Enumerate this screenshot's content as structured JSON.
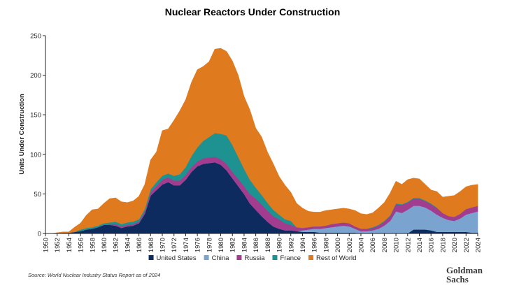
{
  "chart_data": {
    "type": "area",
    "stacked": true,
    "title": "Nuclear Reactors Under Construction",
    "xlabel": "",
    "ylabel": "Units Under Construction",
    "ylim": [
      0,
      250
    ],
    "yticks": [
      0,
      50,
      100,
      150,
      200,
      250
    ],
    "xlim": [
      1950,
      2024
    ],
    "xticks": [
      1950,
      1952,
      1954,
      1956,
      1958,
      1960,
      1962,
      1964,
      1966,
      1968,
      1970,
      1972,
      1974,
      1976,
      1978,
      1980,
      1982,
      1984,
      1986,
      1988,
      1990,
      1992,
      1994,
      1996,
      1998,
      2000,
      2002,
      2004,
      2006,
      2008,
      2010,
      2012,
      2014,
      2016,
      2018,
      2020,
      2022,
      2024
    ],
    "grid": false,
    "legend_position": "bottom",
    "x": [
      1950,
      1951,
      1952,
      1953,
      1954,
      1955,
      1956,
      1957,
      1958,
      1959,
      1960,
      1961,
      1962,
      1963,
      1964,
      1965,
      1966,
      1967,
      1968,
      1969,
      1970,
      1971,
      1972,
      1973,
      1974,
      1975,
      1976,
      1977,
      1978,
      1979,
      1980,
      1981,
      1982,
      1983,
      1984,
      1985,
      1986,
      1987,
      1988,
      1989,
      1990,
      1991,
      1992,
      1993,
      1994,
      1995,
      1996,
      1997,
      1998,
      1999,
      2000,
      2001,
      2002,
      2003,
      2004,
      2005,
      2006,
      2007,
      2008,
      2009,
      2010,
      2011,
      2012,
      2013,
      2014,
      2015,
      2016,
      2017,
      2018,
      2019,
      2020,
      2021,
      2022,
      2023,
      2024
    ],
    "series": [
      {
        "name": "United States",
        "color": "#0d2b5e",
        "values": [
          0,
          0,
          0,
          1,
          1,
          2,
          3,
          5,
          6,
          8,
          11,
          11,
          10,
          7,
          9,
          10,
          13,
          25,
          48,
          55,
          62,
          65,
          61,
          61,
          68,
          78,
          85,
          88,
          89,
          90,
          87,
          80,
          70,
          60,
          50,
          38,
          30,
          22,
          15,
          9,
          6,
          4,
          4,
          3,
          2,
          2,
          2,
          1,
          1,
          1,
          1,
          1,
          1,
          1,
          0,
          0,
          0,
          0,
          0,
          0,
          0,
          0,
          0,
          5,
          5,
          5,
          4,
          2,
          2,
          2,
          2,
          2,
          2,
          1,
          1
        ]
      },
      {
        "name": "China",
        "color": "#7ba3cf",
        "values": [
          0,
          0,
          0,
          0,
          0,
          0,
          0,
          0,
          0,
          0,
          0,
          0,
          0,
          0,
          0,
          0,
          0,
          0,
          0,
          0,
          0,
          0,
          0,
          0,
          0,
          0,
          0,
          0,
          0,
          0,
          0,
          0,
          0,
          0,
          0,
          0,
          0,
          0,
          0,
          0,
          0,
          0,
          0,
          0,
          2,
          3,
          4,
          5,
          6,
          7,
          8,
          9,
          8,
          5,
          3,
          3,
          4,
          6,
          10,
          16,
          28,
          26,
          30,
          30,
          30,
          28,
          25,
          22,
          18,
          15,
          14,
          17,
          22,
          25,
          27
        ]
      },
      {
        "name": "Russia",
        "color": "#a23c8f",
        "values": [
          0,
          0,
          0,
          0,
          0,
          0,
          0,
          0,
          0,
          0,
          0,
          1,
          2,
          2,
          2,
          2,
          2,
          3,
          4,
          5,
          6,
          6,
          6,
          6,
          6,
          6,
          6,
          7,
          7,
          7,
          7,
          8,
          8,
          9,
          10,
          12,
          14,
          15,
          14,
          13,
          12,
          9,
          7,
          5,
          3,
          3,
          3,
          3,
          3,
          4,
          4,
          4,
          4,
          3,
          3,
          3,
          3,
          4,
          5,
          6,
          9,
          10,
          9,
          9,
          9,
          8,
          8,
          8,
          6,
          5,
          5,
          6,
          7,
          7,
          7
        ]
      },
      {
        "name": "France",
        "color": "#1e9290",
        "values": [
          0,
          0,
          0,
          0,
          0,
          0,
          2,
          2,
          2,
          2,
          2,
          2,
          3,
          3,
          3,
          3,
          3,
          3,
          4,
          5,
          5,
          5,
          6,
          8,
          10,
          14,
          18,
          22,
          26,
          30,
          32,
          36,
          34,
          28,
          22,
          18,
          14,
          12,
          10,
          8,
          6,
          5,
          5,
          0,
          0,
          0,
          0,
          0,
          0,
          0,
          0,
          0,
          0,
          0,
          0,
          0,
          1,
          1,
          1,
          1,
          1,
          1,
          1,
          1,
          1,
          1,
          1,
          1,
          0,
          0,
          0,
          0,
          0,
          0,
          0
        ]
      },
      {
        "name": "Rest of World",
        "color": "#e07a1f",
        "values": [
          0,
          0,
          1,
          1,
          1,
          6,
          8,
          16,
          22,
          21,
          25,
          30,
          30,
          28,
          25,
          26,
          29,
          31,
          37,
          38,
          57,
          56,
          70,
          80,
          85,
          93,
          98,
          94,
          95,
          106,
          108,
          106,
          106,
          103,
          91,
          88,
          75,
          73,
          64,
          58,
          48,
          43,
          36,
          30,
          25,
          20,
          18,
          18,
          19,
          18,
          18,
          18,
          18,
          20,
          19,
          18,
          18,
          21,
          23,
          28,
          28,
          25,
          28,
          25,
          24,
          20,
          17,
          20,
          20,
          25,
          27,
          28,
          28,
          28,
          27
        ]
      }
    ]
  },
  "legend": {
    "items": [
      {
        "label": "United States",
        "color": "#0d2b5e"
      },
      {
        "label": "China",
        "color": "#7ba3cf"
      },
      {
        "label": "Russia",
        "color": "#a23c8f"
      },
      {
        "label": "France",
        "color": "#1e9290"
      },
      {
        "label": "Rest of World",
        "color": "#e07a1f"
      }
    ]
  },
  "source": "Source: World Nuclear Industry Status Report as of 2024",
  "logo": {
    "line1": "Goldman",
    "line2": "Sachs"
  }
}
